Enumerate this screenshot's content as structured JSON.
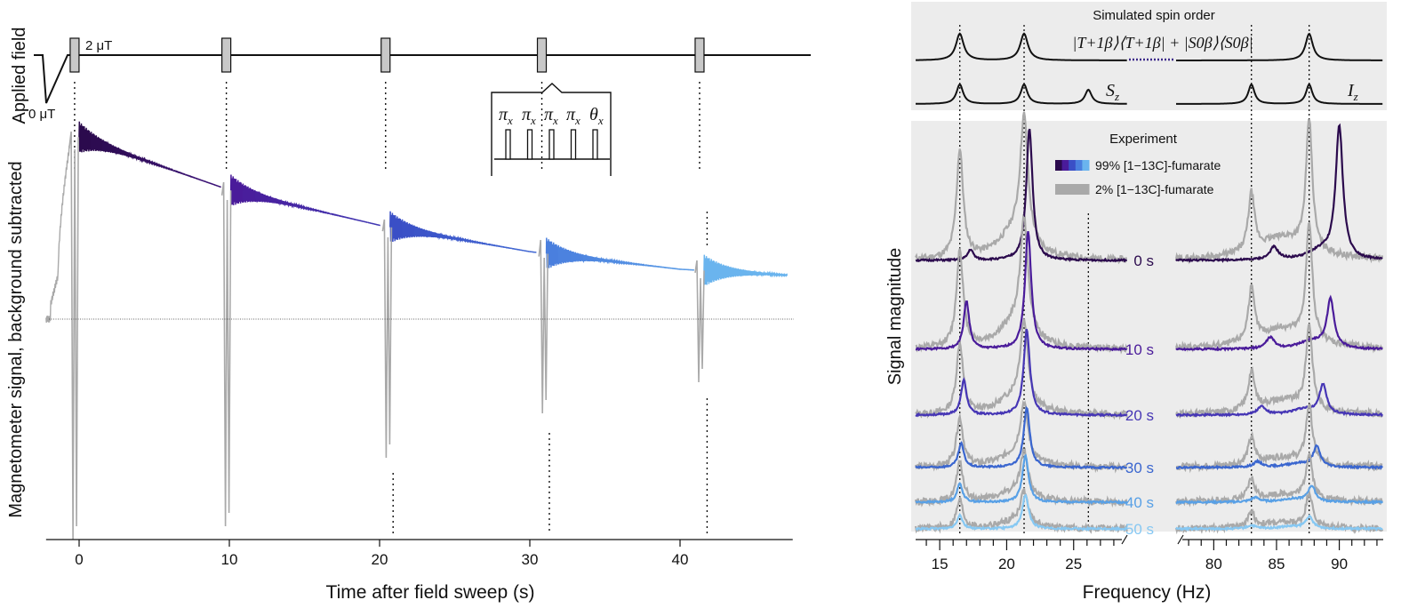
{
  "left_panel": {
    "applied_field_label": "Applied field",
    "field_low_label": "0 μT",
    "field_high_label": "2 μT",
    "pulse_sequence_labels": [
      "π",
      "x",
      "π",
      "x",
      "π",
      "x",
      "π",
      "x",
      "θ",
      "x"
    ]
  },
  "right_panel": {
    "sim_title": "Simulated spin order",
    "sim_expression": "|T+1β⟩⟨T+1β| + |S0β⟩⟨S0β|",
    "sz_label": "S",
    "sz_sub": "z",
    "iz_label": "I",
    "iz_sub": "z",
    "experiment_title": "Experiment",
    "legend": [
      {
        "label": "99% [1−13C]-fumarate",
        "colors": [
          "#2b0a4d",
          "#4a1b9a",
          "#3a4fc6",
          "#4a7fde",
          "#6ab4ee"
        ]
      },
      {
        "label": "2% [1−13C]-fumarate",
        "colors": [
          "#a9a9a9"
        ]
      }
    ],
    "time_labels": [
      "0 s",
      "10 s",
      "20 s",
      "30 s",
      "40 s",
      "50 s"
    ],
    "time_colors": [
      "#2b0a4d",
      "#4a1b9a",
      "#4636b5",
      "#3a66cf",
      "#58a0e6",
      "#86c8f3"
    ]
  },
  "chart_data": [
    {
      "type": "line",
      "title": "",
      "xlabel": "Time after field sweep (s)",
      "ylabel": "Magnetometer signal, background subtracted",
      "xlim": [
        -2.5,
        47.5
      ],
      "xticks": [
        0,
        10,
        20,
        30,
        40
      ],
      "xtick_labels": [
        "0",
        "10",
        "20",
        "30",
        "40"
      ],
      "pulse_times_s": [
        -0.3,
        9.8,
        20.4,
        30.8,
        41.3
      ],
      "envelope": {
        "x": [
          0,
          10,
          20,
          30,
          40,
          47
        ],
        "y": [
          0.62,
          0.44,
          0.32,
          0.23,
          0.17,
          0.15
        ]
      },
      "grid": false
    },
    {
      "type": "line",
      "title": "",
      "xlabel": "Frequency (Hz)",
      "ylabel": "Signal magnitude",
      "xlim_left": [
        13.2,
        29
      ],
      "xlim_right": [
        77,
        93.5
      ],
      "xticks_left": [
        15,
        20,
        25
      ],
      "xticks_right": [
        80,
        85,
        90
      ],
      "reference_lines_hz": [
        16.5,
        21.3,
        26.1,
        83.0,
        87.6
      ],
      "series": [
        {
          "name": "0 s",
          "peaks_hz": [
            17.3,
            21.7,
            84.8,
            90.0
          ]
        },
        {
          "name": "10 s",
          "peaks_hz": [
            17.0,
            21.6,
            84.5,
            89.3
          ]
        },
        {
          "name": "20 s",
          "peaks_hz": [
            16.8,
            21.5,
            83.8,
            88.7
          ]
        },
        {
          "name": "30 s",
          "peaks_hz": [
            16.6,
            21.5,
            83.5,
            88.2
          ]
        },
        {
          "name": "40 s",
          "peaks_hz": [
            16.5,
            21.4,
            83.3,
            87.8
          ]
        },
        {
          "name": "50 s",
          "peaks_hz": [
            16.5,
            21.4,
            83.0,
            87.6
          ]
        }
      ],
      "grid": false
    }
  ]
}
